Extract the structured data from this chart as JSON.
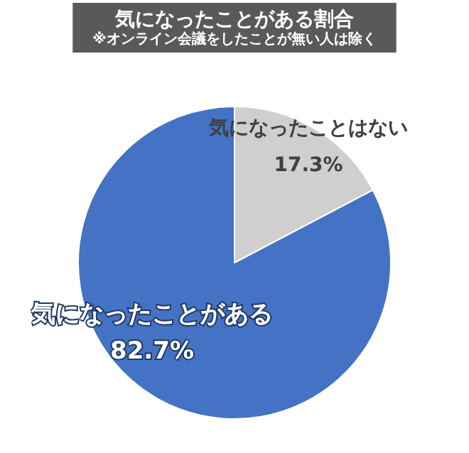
{
  "chart_data": {
    "type": "pie",
    "title": "気になったことがある割合",
    "subtitle": "※オンライン会議をしたことが無い人は除く",
    "categories": [
      "気になったことはない",
      "気になったことがある"
    ],
    "values": [
      17.3,
      82.7
    ],
    "colors": [
      "#d0cece",
      "#4472c4"
    ],
    "data_labels": true,
    "value_labels": [
      "17.3%",
      "82.7%"
    ],
    "legend": false
  }
}
